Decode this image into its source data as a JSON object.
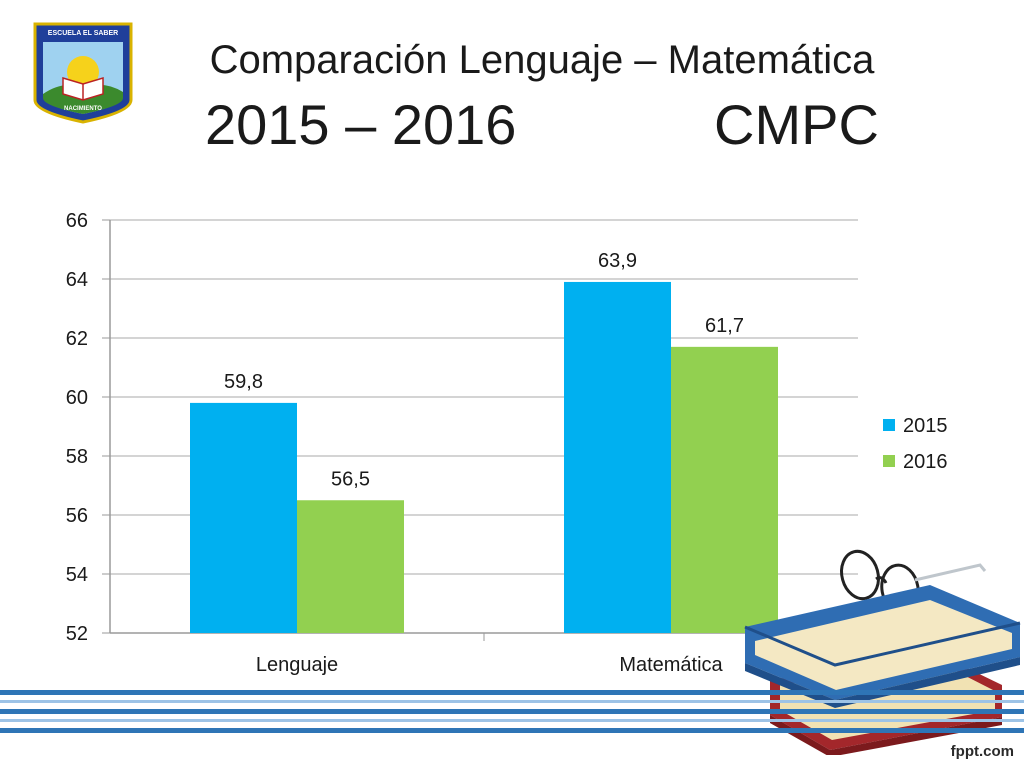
{
  "slide": {
    "title_line1": "Comparación Lenguaje – Matemática",
    "title_years": "2015 – 2016",
    "title_school": "CMPC",
    "logo_text_top": "ESCUELA EL SABER",
    "logo_text_bottom": "NACIMIENTO",
    "brand": "fppt.com"
  },
  "colors": {
    "series_2015": "#00b0f0",
    "series_2016": "#92d050",
    "grid": "#c6c6c6",
    "footer_blue": "#2e75b6"
  },
  "chart_data": {
    "type": "bar",
    "categories": [
      "Lenguaje",
      "Matemática"
    ],
    "series": [
      {
        "name": "2015",
        "values": [
          59.8,
          63.9
        ],
        "labels": [
          "59,8",
          "63,9"
        ]
      },
      {
        "name": "2016",
        "values": [
          56.5,
          61.7
        ],
        "labels": [
          "56,5",
          "61,7"
        ]
      }
    ],
    "ylim": [
      52,
      66
    ],
    "yticks": [
      "52",
      "54",
      "56",
      "58",
      "60",
      "62",
      "64",
      "66"
    ],
    "ytick_values": [
      52,
      54,
      56,
      58,
      60,
      62,
      64,
      66
    ],
    "grid": true,
    "legend": "right"
  }
}
